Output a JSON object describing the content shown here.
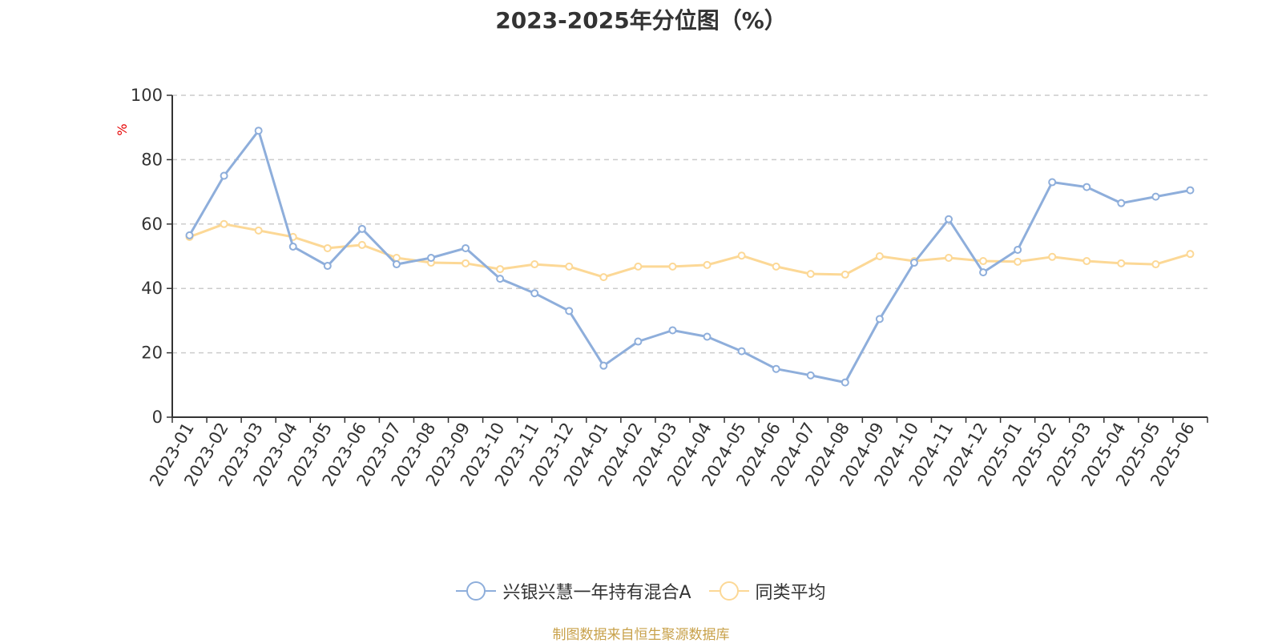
{
  "chart_data": {
    "type": "line",
    "title": "2023-2025年分位图（%）",
    "ylabel": "%",
    "ylim": [
      0,
      100
    ],
    "yticks": [
      0,
      20,
      40,
      60,
      80,
      100
    ],
    "grid": true,
    "legend_position": "bottom",
    "categories": [
      "2023-01",
      "2023-02",
      "2023-03",
      "2023-04",
      "2023-05",
      "2023-06",
      "2023-07",
      "2023-08",
      "2023-09",
      "2023-10",
      "2023-11",
      "2023-12",
      "2024-01",
      "2024-02",
      "2024-03",
      "2024-04",
      "2024-05",
      "2024-06",
      "2024-07",
      "2024-08",
      "2024-09",
      "2024-10",
      "2024-11",
      "2024-12",
      "2025-01",
      "2025-02",
      "2025-03",
      "2025-04",
      "2025-05",
      "2025-06"
    ],
    "series": [
      {
        "name": "兴银兴慧一年持有混合A",
        "color": "#8eaedb",
        "values": [
          56.5,
          75,
          89,
          53,
          47,
          58.5,
          47.5,
          49.5,
          52.5,
          43,
          38.5,
          33,
          16,
          23.5,
          27,
          25,
          20.5,
          15,
          13,
          10.8,
          30.5,
          48,
          61.5,
          45,
          52,
          73,
          71.5,
          66.5,
          68.5,
          70.5
        ]
      },
      {
        "name": "同类平均",
        "color": "#fcd896",
        "values": [
          56,
          60,
          58,
          56,
          52.5,
          53.5,
          49.5,
          48,
          47.8,
          46,
          47.5,
          46.8,
          43.5,
          46.8,
          46.8,
          47.3,
          50.2,
          46.8,
          44.5,
          44.3,
          50,
          48.5,
          49.5,
          48.5,
          48.3,
          49.8,
          48.5,
          47.8,
          47.5,
          50.7
        ]
      }
    ]
  },
  "source_text": "制图数据来自恒生聚源数据库"
}
